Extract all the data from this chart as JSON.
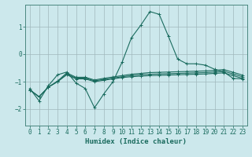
{
  "title": "",
  "xlabel": "Humidex (Indice chaleur)",
  "background_color": "#cce8ec",
  "grid_color": "#a0b8bc",
  "line_color": "#1a6b5e",
  "xlim": [
    -0.5,
    23.5
  ],
  "ylim": [
    -2.6,
    1.8
  ],
  "xticks": [
    0,
    1,
    2,
    3,
    4,
    5,
    6,
    7,
    8,
    9,
    10,
    11,
    12,
    13,
    14,
    15,
    16,
    17,
    18,
    19,
    20,
    21,
    22,
    23
  ],
  "yticks": [
    -2,
    -1,
    0,
    1
  ],
  "series": [
    {
      "x": [
        0,
        1,
        2,
        3,
        4,
        5,
        6,
        7,
        8,
        9,
        10,
        11,
        12,
        13,
        14,
        15,
        16,
        17,
        18,
        19,
        20,
        21,
        22,
        23
      ],
      "y": [
        -1.25,
        -1.7,
        -1.15,
        -0.75,
        -0.65,
        -1.05,
        -1.25,
        -1.95,
        -1.45,
        -1.0,
        -0.28,
        0.6,
        1.05,
        1.55,
        1.45,
        0.65,
        -0.18,
        -0.35,
        -0.35,
        -0.4,
        -0.55,
        -0.65,
        -0.88,
        -0.9
      ]
    },
    {
      "x": [
        0,
        1,
        2,
        3,
        4,
        5,
        6,
        7,
        8,
        9,
        10,
        11,
        12,
        13,
        14,
        15,
        16,
        17,
        18,
        19,
        20,
        21,
        22,
        23
      ],
      "y": [
        -1.3,
        -1.55,
        -1.2,
        -1.0,
        -0.75,
        -0.9,
        -0.9,
        -1.0,
        -0.95,
        -0.9,
        -0.85,
        -0.82,
        -0.8,
        -0.78,
        -0.77,
        -0.76,
        -0.75,
        -0.74,
        -0.73,
        -0.72,
        -0.7,
        -0.68,
        -0.78,
        -0.88
      ]
    },
    {
      "x": [
        0,
        1,
        2,
        3,
        4,
        5,
        6,
        7,
        8,
        9,
        10,
        11,
        12,
        13,
        14,
        15,
        16,
        17,
        18,
        19,
        20,
        21,
        22,
        23
      ],
      "y": [
        -1.3,
        -1.55,
        -1.2,
        -1.0,
        -0.72,
        -0.87,
        -0.87,
        -0.97,
        -0.92,
        -0.87,
        -0.82,
        -0.78,
        -0.75,
        -0.73,
        -0.72,
        -0.71,
        -0.7,
        -0.69,
        -0.68,
        -0.67,
        -0.65,
        -0.62,
        -0.72,
        -0.82
      ]
    },
    {
      "x": [
        0,
        1,
        2,
        3,
        4,
        5,
        6,
        7,
        8,
        9,
        10,
        11,
        12,
        13,
        14,
        15,
        16,
        17,
        18,
        19,
        20,
        21,
        22,
        23
      ],
      "y": [
        -1.3,
        -1.55,
        -1.2,
        -0.98,
        -0.68,
        -0.84,
        -0.84,
        -0.94,
        -0.88,
        -0.83,
        -0.78,
        -0.73,
        -0.7,
        -0.67,
        -0.66,
        -0.65,
        -0.64,
        -0.63,
        -0.62,
        -0.61,
        -0.59,
        -0.56,
        -0.66,
        -0.76
      ]
    }
  ]
}
